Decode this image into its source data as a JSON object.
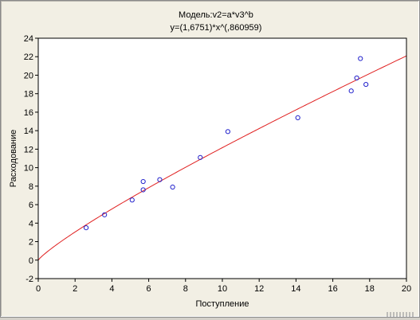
{
  "chart_data": {
    "type": "scatter",
    "title": "Модель:v2=a*v3^b",
    "subtitle": "y=(1,6751)*x^(,860959)",
    "xlabel": "Поступление",
    "ylabel": "Расходование",
    "xlim": [
      0,
      20
    ],
    "ylim": [
      -2,
      24
    ],
    "x_ticks": [
      "0",
      "2",
      "4",
      "6",
      "8",
      "10",
      "12",
      "14",
      "16",
      "18",
      "20"
    ],
    "y_ticks": [
      "-2",
      "0",
      "2",
      "4",
      "6",
      "8",
      "10",
      "12",
      "14",
      "16",
      "18",
      "20",
      "22",
      "24"
    ],
    "grid": false,
    "points": [
      {
        "x": 2.6,
        "y": 3.5
      },
      {
        "x": 3.6,
        "y": 4.9
      },
      {
        "x": 5.1,
        "y": 6.5
      },
      {
        "x": 5.7,
        "y": 7.6
      },
      {
        "x": 5.7,
        "y": 8.5
      },
      {
        "x": 6.6,
        "y": 8.7
      },
      {
        "x": 7.3,
        "y": 7.9
      },
      {
        "x": 8.8,
        "y": 11.1
      },
      {
        "x": 10.3,
        "y": 13.9
      },
      {
        "x": 14.1,
        "y": 15.4
      },
      {
        "x": 17.0,
        "y": 18.3
      },
      {
        "x": 17.3,
        "y": 19.7
      },
      {
        "x": 17.5,
        "y": 21.8
      },
      {
        "x": 17.8,
        "y": 19.0
      }
    ],
    "fit": {
      "a": 1.6751,
      "b": 0.860959
    },
    "colors": {
      "points": "#2222cc",
      "fit_line": "#e02020",
      "axes": "#000000",
      "plot_bg": "#ffffff"
    }
  }
}
